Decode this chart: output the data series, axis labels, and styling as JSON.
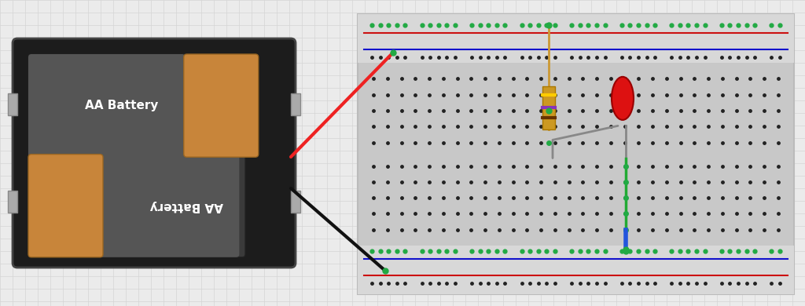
{
  "bg_color": "#ebebeb",
  "grid_color": "#d5d5d5",
  "battery_box_color": "#1c1c1c",
  "battery_box_border": "#3a3a3a",
  "battery1_tip": "#c8853a",
  "battery2_tip": "#c8853a",
  "battery_text1": "AA Battery",
  "battery_text2": "AA Battery",
  "bb_bg": "#d0d0d0",
  "bb_main": "#cbcbcb",
  "bb_rail_bg": "#dedede",
  "red_rail_color": "#cc1111",
  "blue_rail_color": "#1111cc",
  "dot_color": "#222222",
  "green_dot_color": "#22aa44",
  "red_wire_color": "#ee2222",
  "black_wire_color": "#111111",
  "led_color": "#dd1111",
  "blue_wire_color": "#2255dd",
  "green_wire_color": "#22aa33",
  "gray_wire_color": "#888888",
  "resistor_body": "#cc9922",
  "band1": "#ffcc00",
  "band2": "#8833bb",
  "band3": "#663300",
  "connector_color": "#aaaaaa"
}
